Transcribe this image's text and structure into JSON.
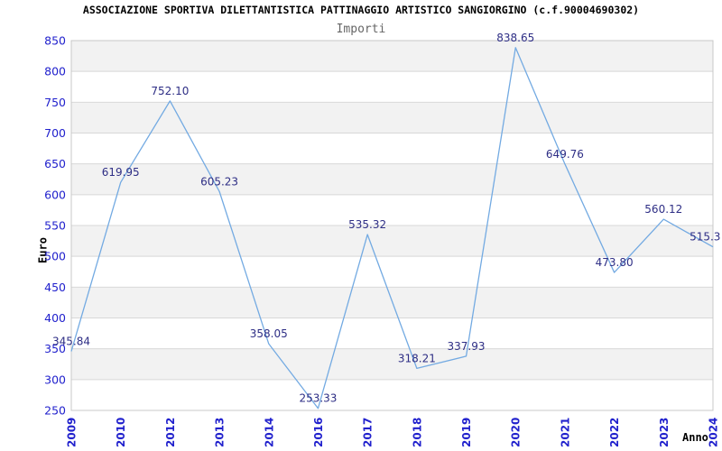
{
  "header": {
    "title": "ASSOCIAZIONE SPORTIVA DILETTANTISTICA PATTINAGGIO ARTISTICO SANGIORGINO (c.f.90004690302)"
  },
  "chart_data": {
    "type": "line",
    "title": "Importi",
    "xlabel": "Anno",
    "ylabel": "Euro",
    "categories": [
      "2009",
      "2010",
      "2012",
      "2013",
      "2014",
      "2016",
      "2017",
      "2018",
      "2019",
      "2020",
      "2021",
      "2022",
      "2023",
      "2024"
    ],
    "values": [
      345.84,
      619.95,
      752.1,
      605.23,
      358.05,
      253.33,
      535.32,
      318.21,
      337.93,
      838.65,
      649.76,
      473.8,
      560.12,
      515.3
    ],
    "point_labels": [
      "345.84",
      "619.95",
      "752.10",
      "605.23",
      "358.05",
      "253.33",
      "535.32",
      "318.21",
      "337.93",
      "838.65",
      "649.76",
      "473.80",
      "560.12",
      "515.3"
    ],
    "ylim": [
      250,
      850
    ],
    "y_tick_step": 50,
    "y_ticks": [
      "850",
      "800",
      "750",
      "700",
      "650",
      "600",
      "550",
      "500",
      "450",
      "400",
      "350",
      "300",
      "250"
    ],
    "grid": true,
    "alternating_bands": true,
    "legend_position": "none",
    "colors": {
      "line": "#73aae2",
      "data_label": "#2e2e85",
      "tick_label": "#2121cd",
      "band": "#f2f2f2",
      "grid": "#d8d8d8",
      "border": "#c8c8c8",
      "title": "#000000",
      "subtitle": "#666666"
    }
  }
}
